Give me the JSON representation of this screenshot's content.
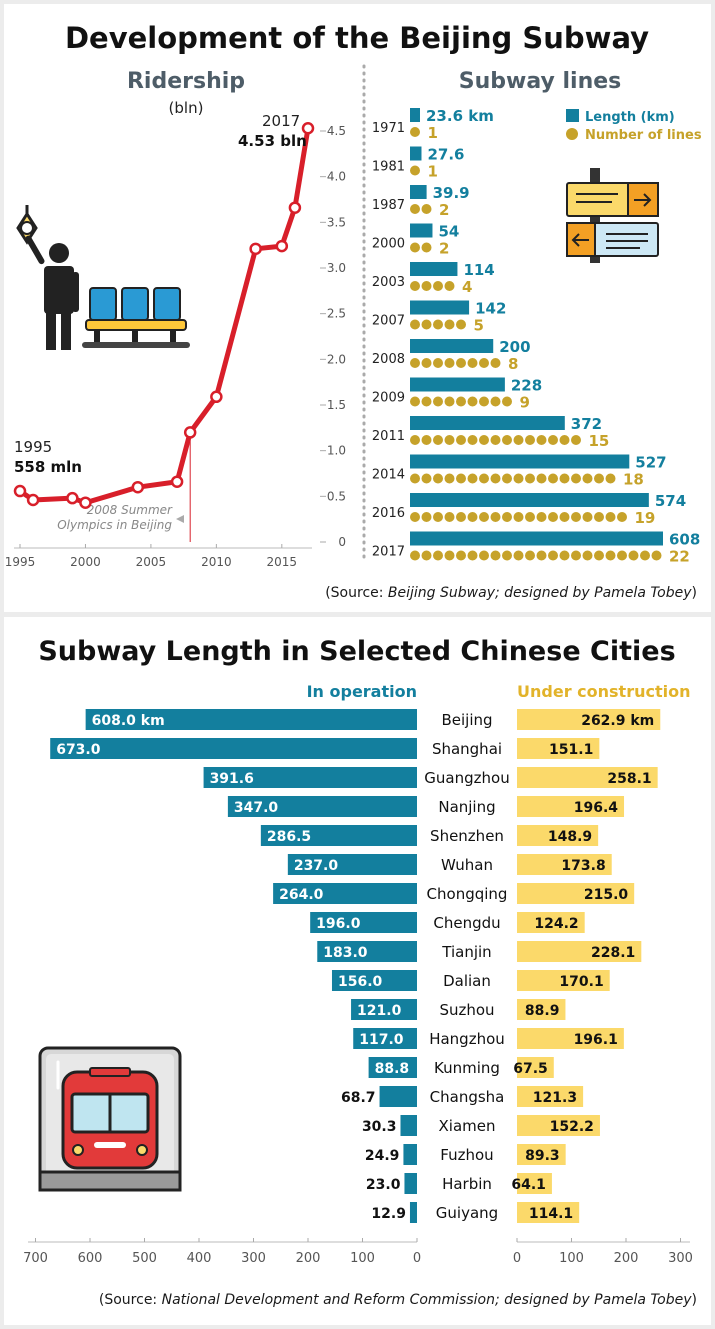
{
  "page": {
    "title_top": "Development of the Beijing Subway",
    "title_bottom": "Subway Length in Selected Chinese Cities",
    "source_top_prefix": "(Source: ",
    "source_top_italic": "Beijing Subway; designed by Pamela Tobey",
    "source_top_suffix": ")",
    "source_bottom_prefix": "(Source: ",
    "source_bottom_italic": "National Development and Reform Commission; designed by Pamela Tobey",
    "source_bottom_suffix": ")"
  },
  "colors": {
    "blue": "#137f9e",
    "gold": "#c6a22a",
    "yellow": "#fbd96a",
    "red": "#d81f2a"
  },
  "icons": [
    "commuter-icon",
    "subway-seats-icon",
    "direction-signs-icon",
    "subway-train-icon"
  ],
  "chart_data": [
    {
      "type": "line",
      "title": "Ridership",
      "unit_label": "(bln)",
      "x": [
        1995,
        1996,
        1999,
        2000,
        2004,
        2007,
        2008,
        2010,
        2013,
        2015,
        2016,
        2017
      ],
      "y": [
        0.558,
        0.46,
        0.48,
        0.43,
        0.6,
        0.66,
        1.2,
        1.59,
        3.21,
        3.24,
        3.66,
        4.53
      ],
      "xticks": [
        "1995",
        "2000",
        "2005",
        "2010",
        "2015"
      ],
      "yticks": [
        "0",
        "0.5",
        "1.0",
        "1.5",
        "2.0",
        "2.5",
        "3.0",
        "3.5",
        "4.0",
        "4.5"
      ],
      "xlim": [
        1995,
        2017
      ],
      "ylim": [
        0,
        4.5
      ],
      "annotations": [
        {
          "year": "1995",
          "value": "558 mln"
        },
        {
          "year": "2017",
          "value": "4.53 bln"
        },
        {
          "text": "2008 Summer Olympics in Beijing",
          "line1": "2008 Summer",
          "line2": "Olympics in Beijing",
          "x": 2008
        }
      ]
    },
    {
      "type": "bar",
      "title": "Subway lines",
      "legend": [
        "Length (km)",
        "Number of lines"
      ],
      "categories": [
        "1971",
        "1981",
        "1987",
        "2000",
        "2003",
        "2007",
        "2008",
        "2009",
        "2011",
        "2014",
        "2016",
        "2017"
      ],
      "length_labels": [
        "23.6 km",
        "27.6",
        "39.9",
        "54",
        "114",
        "142",
        "200",
        "228",
        "372",
        "527",
        "574",
        "608"
      ],
      "series": [
        {
          "name": "Length (km)",
          "values": [
            23.6,
            27.6,
            39.9,
            54,
            114,
            142,
            200,
            228,
            372,
            527,
            574,
            608
          ]
        },
        {
          "name": "Number of lines",
          "values": [
            1,
            1,
            2,
            2,
            4,
            5,
            8,
            9,
            15,
            18,
            19,
            22
          ]
        }
      ]
    },
    {
      "type": "bar",
      "title": "Subway Length in Selected Chinese Cities",
      "legend": [
        "In operation",
        "Under construction"
      ],
      "categories": [
        "Beijing",
        "Shanghai",
        "Guangzhou",
        "Nanjing",
        "Shenzhen",
        "Wuhan",
        "Chongqing",
        "Chengdu",
        "Tianjin",
        "Dalian",
        "Suzhou",
        "Hangzhou",
        "Kunming",
        "Changsha",
        "Xiamen",
        "Fuzhou",
        "Harbin",
        "Guiyang"
      ],
      "operation_labels": [
        "608.0 km",
        "673.0",
        "391.6",
        "347.0",
        "286.5",
        "237.0",
        "264.0",
        "196.0",
        "183.0",
        "156.0",
        "121.0",
        "117.0",
        "88.8",
        "68.7",
        "30.3",
        "24.9",
        "23.0",
        "12.9"
      ],
      "construction_labels": [
        "262.9 km",
        "151.1",
        "258.1",
        "196.4",
        "148.9",
        "173.8",
        "215.0",
        "124.2",
        "228.1",
        "170.1",
        "88.9",
        "196.1",
        "67.5",
        "121.3",
        "152.2",
        "89.3",
        "64.1",
        "114.1"
      ],
      "series": [
        {
          "name": "In operation",
          "values": [
            608.0,
            673.0,
            391.6,
            347.0,
            286.5,
            237.0,
            264.0,
            196.0,
            183.0,
            156.0,
            121.0,
            117.0,
            88.8,
            68.7,
            30.3,
            24.9,
            23.0,
            12.9
          ]
        },
        {
          "name": "Under construction",
          "values": [
            262.9,
            151.1,
            258.1,
            196.4,
            148.9,
            173.8,
            215.0,
            124.2,
            228.1,
            170.1,
            88.9,
            196.1,
            67.5,
            121.3,
            152.2,
            89.3,
            64.1,
            114.1
          ]
        }
      ],
      "left_ticks": [
        "700",
        "600",
        "500",
        "400",
        "300",
        "200",
        "100",
        "0"
      ],
      "right_ticks": [
        "0",
        "100",
        "200",
        "300"
      ]
    }
  ]
}
